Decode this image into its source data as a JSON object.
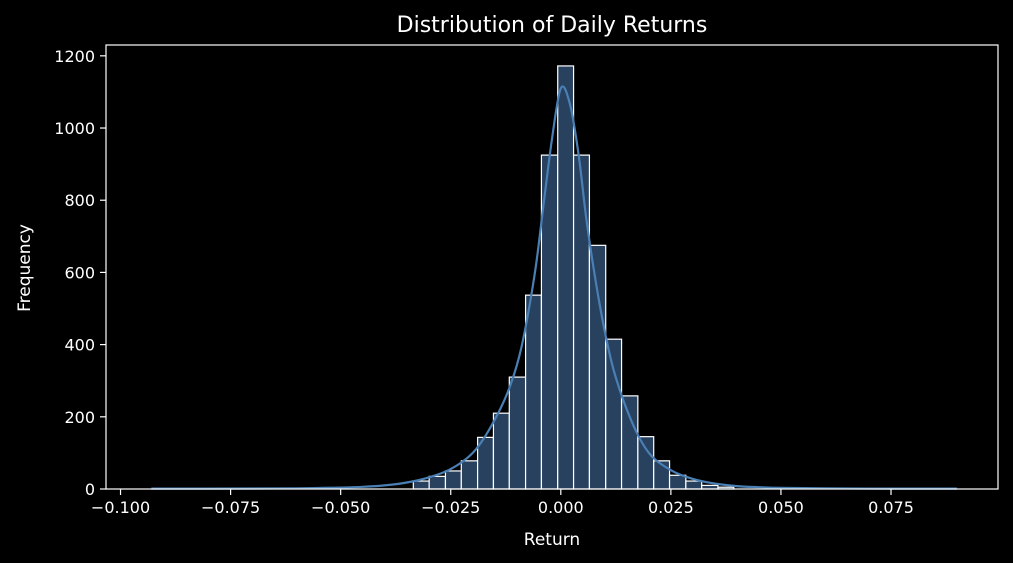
{
  "chart_data": {
    "type": "bar",
    "title": "Distribution of Daily Returns",
    "xlabel": "Return",
    "ylabel": "Frequency",
    "xlim": [
      -0.1033,
      0.0993
    ],
    "ylim": [
      0,
      1230
    ],
    "xticks": [
      -0.1,
      -0.075,
      -0.05,
      -0.025,
      0.0,
      0.025,
      0.05,
      0.075
    ],
    "xtick_labels": [
      "−0.100",
      "−0.075",
      "−0.050",
      "−0.025",
      "0.000",
      "0.025",
      "0.050",
      "0.075"
    ],
    "yticks": [
      0,
      200,
      400,
      600,
      800,
      1000,
      1200
    ],
    "ytick_labels": [
      "0",
      "200",
      "400",
      "600",
      "800",
      "1000",
      "1200"
    ],
    "grid": false,
    "bar_color": "#27415f",
    "bar_edge_color": "#ffffff",
    "kde_color": "#4a7fb5",
    "bins": [
      {
        "x0": -0.0335,
        "x1": -0.0299,
        "count": 22
      },
      {
        "x0": -0.0299,
        "x1": -0.0262,
        "count": 35
      },
      {
        "x0": -0.0262,
        "x1": -0.0226,
        "count": 50
      },
      {
        "x0": -0.0226,
        "x1": -0.0189,
        "count": 78
      },
      {
        "x0": -0.0189,
        "x1": -0.0153,
        "count": 143
      },
      {
        "x0": -0.0153,
        "x1": -0.0117,
        "count": 210
      },
      {
        "x0": -0.0117,
        "x1": -0.008,
        "count": 310
      },
      {
        "x0": -0.008,
        "x1": -0.0044,
        "count": 537
      },
      {
        "x0": -0.0044,
        "x1": -0.0007,
        "count": 925
      },
      {
        "x0": -0.0007,
        "x1": 0.0029,
        "count": 1172
      },
      {
        "x0": 0.0029,
        "x1": 0.0065,
        "count": 925
      },
      {
        "x0": 0.0065,
        "x1": 0.0102,
        "count": 675
      },
      {
        "x0": 0.0102,
        "x1": 0.0138,
        "count": 415
      },
      {
        "x0": 0.0138,
        "x1": 0.0175,
        "count": 258
      },
      {
        "x0": 0.0175,
        "x1": 0.0211,
        "count": 145
      },
      {
        "x0": 0.0211,
        "x1": 0.0247,
        "count": 78
      },
      {
        "x0": 0.0247,
        "x1": 0.0284,
        "count": 38
      },
      {
        "x0": 0.0284,
        "x1": 0.032,
        "count": 22
      },
      {
        "x0": 0.032,
        "x1": 0.0357,
        "count": 10
      },
      {
        "x0": 0.0357,
        "x1": 0.0393,
        "count": 5
      }
    ],
    "kde": {
      "x": [
        -0.093,
        -0.08,
        -0.06,
        -0.05,
        -0.045,
        -0.04,
        -0.035,
        -0.03,
        -0.025,
        -0.02,
        -0.016,
        -0.012,
        -0.009,
        -0.006,
        -0.004,
        -0.002,
        0.0,
        0.002,
        0.004,
        0.006,
        0.009,
        0.012,
        0.016,
        0.02,
        0.025,
        0.03,
        0.035,
        0.04,
        0.045,
        0.05,
        0.06,
        0.075,
        0.09
      ],
      "y": [
        1,
        1,
        2,
        4,
        6,
        10,
        18,
        32,
        55,
        100,
        170,
        270,
        390,
        590,
        780,
        970,
        1110,
        1070,
        930,
        730,
        500,
        330,
        190,
        100,
        52,
        28,
        15,
        8,
        5,
        3,
        2,
        1,
        1
      ]
    }
  }
}
